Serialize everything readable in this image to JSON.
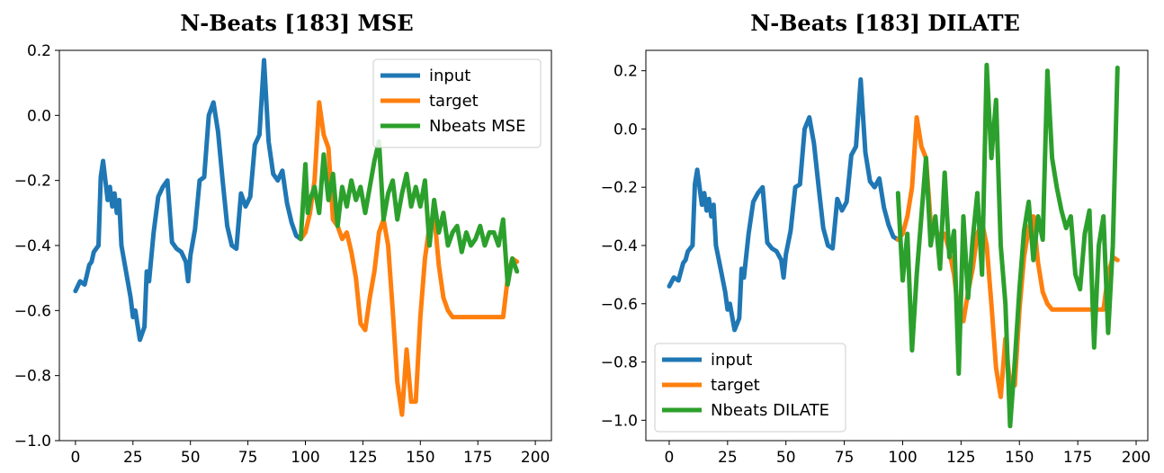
{
  "chart_data": [
    {
      "type": "line",
      "title": "N-Beats [183] MSE",
      "xlabel": "",
      "ylabel": "",
      "xlim": [
        -7,
        207
      ],
      "ylim": [
        -1.0,
        0.2
      ],
      "xticks": [
        0,
        25,
        50,
        75,
        100,
        125,
        150,
        175,
        200
      ],
      "xtick_labels": [
        "0",
        "25",
        "50",
        "75",
        "100",
        "125",
        "150",
        "175",
        "200"
      ],
      "yticks": [
        0.2,
        0.0,
        -0.2,
        -0.4,
        -0.6,
        -0.8,
        -1.0
      ],
      "ytick_labels": [
        "0.2",
        "0.0",
        "−0.2",
        "−0.4",
        "−0.6",
        "−0.8",
        "−1.0"
      ],
      "grid": false,
      "legend_position": "top-right",
      "series": [
        {
          "name": "input",
          "color": "#1f77b4",
          "x": [
            0,
            2,
            4,
            6,
            7,
            8,
            10,
            11,
            12,
            14,
            15,
            16,
            17,
            18,
            19,
            20,
            22,
            24,
            25,
            26,
            28,
            30,
            31,
            32,
            34,
            36,
            38,
            40,
            42,
            44,
            46,
            48,
            49,
            50,
            52,
            54,
            56,
            58,
            60,
            62,
            64,
            66,
            68,
            70,
            72,
            74,
            76,
            78,
            80,
            82,
            84,
            86,
            88,
            90,
            92,
            94,
            96,
            98
          ],
          "y": [
            -0.54,
            -0.51,
            -0.52,
            -0.46,
            -0.45,
            -0.42,
            -0.4,
            -0.19,
            -0.14,
            -0.26,
            -0.22,
            -0.28,
            -0.24,
            -0.3,
            -0.26,
            -0.4,
            -0.48,
            -0.56,
            -0.62,
            -0.6,
            -0.69,
            -0.65,
            -0.48,
            -0.51,
            -0.36,
            -0.25,
            -0.22,
            -0.2,
            -0.39,
            -0.41,
            -0.42,
            -0.45,
            -0.51,
            -0.43,
            -0.35,
            -0.2,
            -0.19,
            0.0,
            0.04,
            -0.05,
            -0.2,
            -0.34,
            -0.4,
            -0.41,
            -0.24,
            -0.28,
            -0.25,
            -0.09,
            -0.06,
            0.17,
            -0.08,
            -0.18,
            -0.2,
            -0.17,
            -0.27,
            -0.33,
            -0.37,
            -0.38
          ]
        },
        {
          "name": "target",
          "color": "#ff7f0e",
          "x": [
            98,
            100,
            102,
            104,
            106,
            108,
            110,
            112,
            114,
            116,
            118,
            120,
            122,
            124,
            126,
            128,
            130,
            132,
            134,
            136,
            138,
            140,
            142,
            144,
            146,
            148,
            150,
            152,
            154,
            156,
            158,
            160,
            162,
            164,
            166,
            168,
            170,
            172,
            174,
            176,
            178,
            180,
            182,
            184,
            186,
            188,
            190,
            192
          ],
          "y": [
            -0.38,
            -0.36,
            -0.3,
            -0.2,
            0.04,
            -0.06,
            -0.1,
            -0.32,
            -0.34,
            -0.38,
            -0.36,
            -0.42,
            -0.5,
            -0.64,
            -0.66,
            -0.56,
            -0.48,
            -0.36,
            -0.32,
            -0.4,
            -0.6,
            -0.82,
            -0.92,
            -0.72,
            -0.88,
            -0.88,
            -0.62,
            -0.44,
            -0.34,
            -0.3,
            -0.46,
            -0.56,
            -0.6,
            -0.62,
            -0.62,
            -0.62,
            -0.62,
            -0.62,
            -0.62,
            -0.62,
            -0.62,
            -0.62,
            -0.62,
            -0.62,
            -0.62,
            -0.5,
            -0.44,
            -0.45
          ]
        },
        {
          "name": "Nbeats MSE",
          "color": "#2ca02c",
          "x": [
            98,
            100,
            101,
            102,
            104,
            106,
            108,
            110,
            112,
            114,
            116,
            118,
            120,
            122,
            124,
            126,
            128,
            130,
            132,
            134,
            136,
            138,
            140,
            142,
            144,
            146,
            148,
            150,
            152,
            154,
            156,
            158,
            160,
            162,
            164,
            166,
            168,
            170,
            172,
            174,
            176,
            178,
            180,
            182,
            184,
            186,
            188,
            190,
            192
          ],
          "y": [
            -0.38,
            -0.15,
            -0.3,
            -0.26,
            -0.22,
            -0.3,
            -0.12,
            -0.26,
            -0.18,
            -0.34,
            -0.22,
            -0.28,
            -0.2,
            -0.26,
            -0.22,
            -0.3,
            -0.22,
            -0.14,
            -0.08,
            -0.32,
            -0.24,
            -0.2,
            -0.32,
            -0.24,
            -0.18,
            -0.28,
            -0.22,
            -0.28,
            -0.2,
            -0.4,
            -0.26,
            -0.36,
            -0.3,
            -0.4,
            -0.36,
            -0.34,
            -0.42,
            -0.36,
            -0.4,
            -0.38,
            -0.34,
            -0.4,
            -0.36,
            -0.36,
            -0.4,
            -0.32,
            -0.52,
            -0.44,
            -0.48
          ]
        }
      ]
    },
    {
      "type": "line",
      "title": "N-Beats [183] DILATE",
      "xlabel": "",
      "ylabel": "",
      "xlim": [
        -10,
        205
      ],
      "ylim": [
        -1.07,
        0.27
      ],
      "xticks": [
        0,
        25,
        50,
        75,
        100,
        125,
        150,
        175,
        200
      ],
      "xtick_labels": [
        "0",
        "25",
        "50",
        "75",
        "100",
        "125",
        "150",
        "175",
        "200"
      ],
      "yticks": [
        0.2,
        0.0,
        -0.2,
        -0.4,
        -0.6,
        -0.8,
        -1.0
      ],
      "ytick_labels": [
        "0.2",
        "0.0",
        "−0.2",
        "−0.4",
        "−0.6",
        "−0.8",
        "−1.0"
      ],
      "grid": false,
      "legend_position": "bottom-left",
      "series": [
        {
          "name": "input",
          "color": "#1f77b4",
          "x": [
            0,
            2,
            4,
            6,
            7,
            8,
            10,
            11,
            12,
            14,
            15,
            16,
            17,
            18,
            19,
            20,
            22,
            24,
            25,
            26,
            28,
            30,
            31,
            32,
            34,
            36,
            38,
            40,
            42,
            44,
            46,
            48,
            49,
            50,
            52,
            54,
            56,
            58,
            60,
            62,
            64,
            66,
            68,
            70,
            72,
            74,
            76,
            78,
            80,
            82,
            84,
            86,
            88,
            90,
            92,
            94,
            96,
            98
          ],
          "y": [
            -0.54,
            -0.51,
            -0.52,
            -0.46,
            -0.45,
            -0.42,
            -0.4,
            -0.19,
            -0.14,
            -0.26,
            -0.22,
            -0.28,
            -0.24,
            -0.3,
            -0.26,
            -0.4,
            -0.48,
            -0.56,
            -0.62,
            -0.6,
            -0.69,
            -0.65,
            -0.48,
            -0.51,
            -0.36,
            -0.25,
            -0.22,
            -0.2,
            -0.39,
            -0.41,
            -0.42,
            -0.45,
            -0.51,
            -0.43,
            -0.35,
            -0.2,
            -0.19,
            0.0,
            0.04,
            -0.05,
            -0.2,
            -0.34,
            -0.4,
            -0.41,
            -0.24,
            -0.28,
            -0.25,
            -0.09,
            -0.06,
            0.17,
            -0.08,
            -0.18,
            -0.2,
            -0.17,
            -0.27,
            -0.33,
            -0.37,
            -0.38
          ]
        },
        {
          "name": "target",
          "color": "#ff7f0e",
          "x": [
            98,
            100,
            102,
            104,
            106,
            108,
            110,
            112,
            114,
            116,
            118,
            120,
            122,
            124,
            126,
            128,
            130,
            132,
            134,
            136,
            138,
            140,
            142,
            144,
            146,
            148,
            150,
            152,
            154,
            156,
            158,
            160,
            162,
            164,
            166,
            168,
            170,
            172,
            174,
            176,
            178,
            180,
            182,
            184,
            186,
            188,
            190,
            192
          ],
          "y": [
            -0.38,
            -0.36,
            -0.3,
            -0.2,
            0.04,
            -0.06,
            -0.1,
            -0.32,
            -0.34,
            -0.38,
            -0.36,
            -0.42,
            -0.5,
            -0.64,
            -0.66,
            -0.56,
            -0.48,
            -0.36,
            -0.32,
            -0.4,
            -0.6,
            -0.82,
            -0.92,
            -0.72,
            -0.88,
            -0.88,
            -0.62,
            -0.44,
            -0.34,
            -0.3,
            -0.46,
            -0.56,
            -0.6,
            -0.62,
            -0.62,
            -0.62,
            -0.62,
            -0.62,
            -0.62,
            -0.62,
            -0.62,
            -0.62,
            -0.62,
            -0.62,
            -0.62,
            -0.5,
            -0.44,
            -0.45
          ]
        },
        {
          "name": "Nbeats DILATE",
          "color": "#2ca02c",
          "x": [
            98,
            100,
            102,
            104,
            106,
            108,
            110,
            112,
            114,
            116,
            118,
            120,
            122,
            124,
            126,
            128,
            130,
            132,
            134,
            136,
            138,
            140,
            142,
            144,
            146,
            148,
            150,
            152,
            154,
            156,
            158,
            160,
            162,
            164,
            166,
            168,
            170,
            172,
            174,
            176,
            178,
            180,
            182,
            184,
            186,
            188,
            190,
            192
          ],
          "y": [
            -0.22,
            -0.52,
            -0.36,
            -0.76,
            -0.5,
            -0.3,
            -0.1,
            -0.4,
            -0.3,
            -0.48,
            -0.15,
            -0.44,
            -0.35,
            -0.84,
            -0.3,
            -0.58,
            -0.38,
            -0.22,
            -0.5,
            0.22,
            -0.1,
            0.1,
            -0.4,
            -0.6,
            -1.02,
            -0.8,
            -0.55,
            -0.35,
            -0.25,
            -0.45,
            -0.3,
            -0.38,
            0.2,
            -0.1,
            -0.2,
            -0.28,
            -0.34,
            -0.3,
            -0.5,
            -0.55,
            -0.36,
            -0.28,
            -0.75,
            -0.4,
            -0.3,
            -0.7,
            -0.4,
            0.21
          ]
        }
      ]
    }
  ]
}
